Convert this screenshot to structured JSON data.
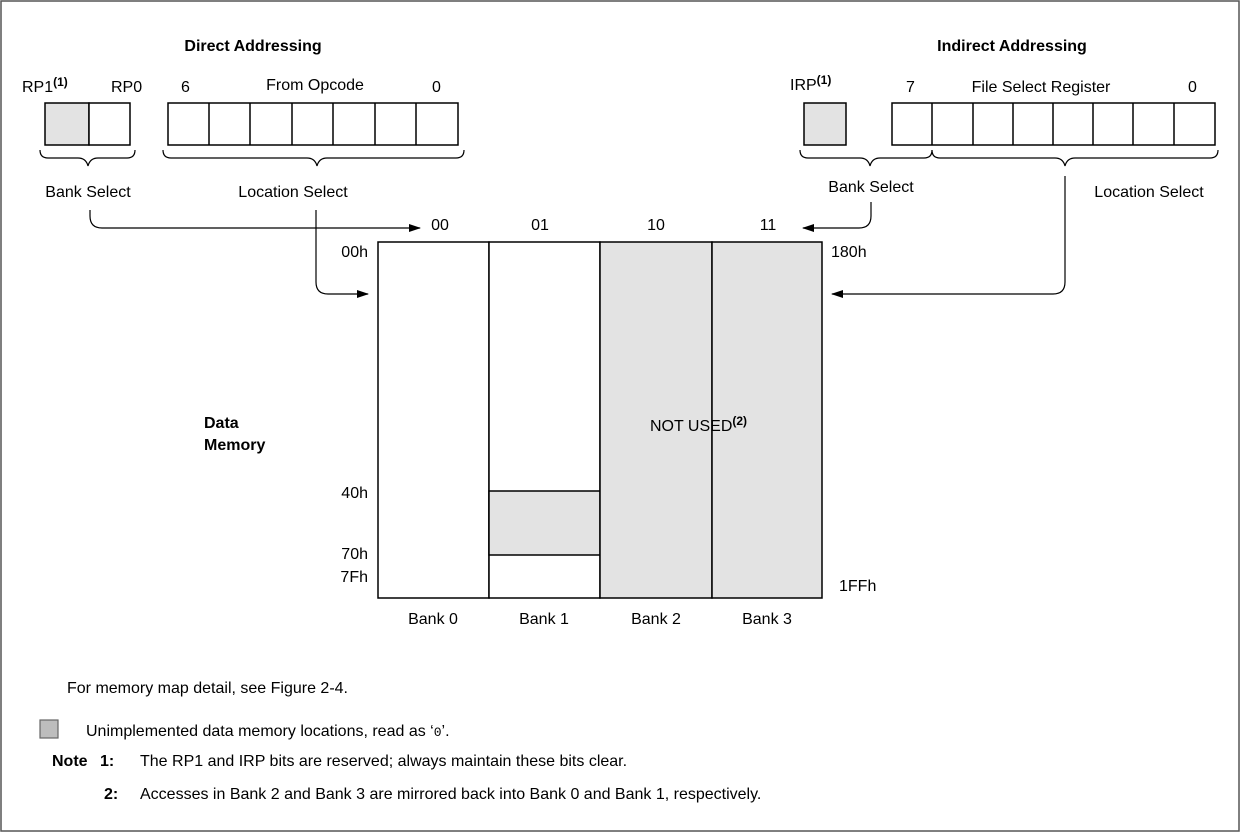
{
  "direct": {
    "title": "Direct Addressing",
    "rp1": "RP1",
    "rp1_sup": "(1)",
    "rp0": "RP0",
    "bit_high": "6",
    "opcode_label": "From Opcode",
    "bit_low": "0",
    "bank_select": "Bank Select",
    "location_select": "Location Select"
  },
  "indirect": {
    "title": "Indirect Addressing",
    "irp": "IRP",
    "irp_sup": "(1)",
    "bit_high": "7",
    "fsr_label": "File Select Register",
    "bit_low": "0",
    "bank_select": "Bank Select",
    "location_select": "Location Select"
  },
  "banks": {
    "codes": [
      "00",
      "01",
      "10",
      "11"
    ],
    "names": [
      "Bank 0",
      "Bank 1",
      "Bank 2",
      "Bank 3"
    ]
  },
  "addresses": {
    "a00": "00h",
    "a40": "40h",
    "a70": "70h",
    "a7f": "7Fh",
    "a180": "180h",
    "a1ff": "1FFh"
  },
  "memory_label": {
    "line1": "Data",
    "line2": "Memory"
  },
  "not_used": {
    "text": "NOT USED",
    "sup": "(2)"
  },
  "notes": {
    "memory_map": "For memory map detail, see Figure 2-4.",
    "legend_text_a": "Unimplemented data memory locations, read as ‘",
    "legend_zero": "0",
    "legend_text_b": "’.",
    "note_label": "Note",
    "note1_num": "1:",
    "note1_text": "The RP1 and IRP bits are reserved; always maintain these bits clear.",
    "note2_num": "2:",
    "note2_text": "Accesses in Bank 2 and Bank 3 are mirrored back into Bank 0 and Bank 1, respectively."
  },
  "colors": {
    "shade": "#e3e3e3",
    "legend_box": "#bdbdbd",
    "line": "#000000",
    "frame": "#555555"
  }
}
